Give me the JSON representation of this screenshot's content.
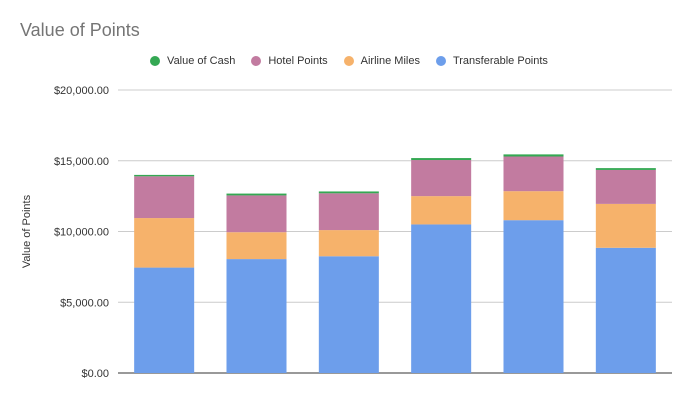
{
  "chart_data": {
    "type": "bar",
    "stacked": true,
    "title": "Value of Points",
    "xlabel": "",
    "ylabel": "Value of Points",
    "ylim": [
      0,
      20000
    ],
    "yticks": [
      0,
      5000,
      10000,
      15000,
      20000
    ],
    "ytick_labels": [
      "$0.00",
      "$5,000.00",
      "$10,000.00",
      "$15,000.00",
      "$20,000.00"
    ],
    "categories": [
      "",
      "",
      "",
      "",
      "",
      ""
    ],
    "series": [
      {
        "name": "Transferable Points",
        "color": "#6d9eeb",
        "values": [
          7450,
          8050,
          8250,
          10500,
          10800,
          8850
        ]
      },
      {
        "name": "Airline Miles",
        "color": "#f6b26b",
        "values": [
          3500,
          1900,
          1850,
          2000,
          2050,
          3100
        ]
      },
      {
        "name": "Hotel Points",
        "color": "#c27ba0",
        "values": [
          2950,
          2600,
          2600,
          2550,
          2450,
          2400
        ]
      },
      {
        "name": "Value of Cash",
        "color": "#34a853",
        "values": [
          100,
          130,
          130,
          140,
          150,
          130
        ]
      }
    ],
    "legend_order": [
      3,
      2,
      1,
      0
    ],
    "legend_position": "top",
    "grid": true
  }
}
